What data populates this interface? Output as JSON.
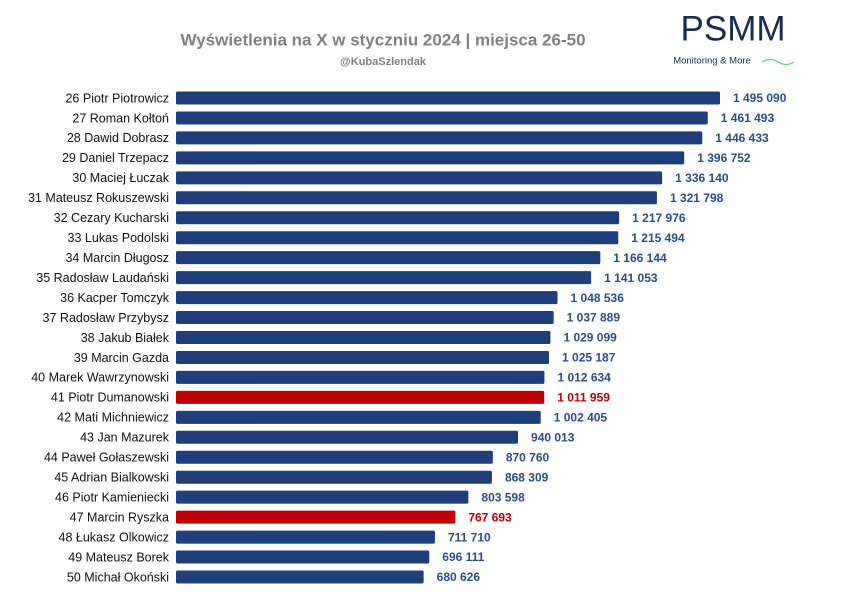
{
  "chart_data": {
    "type": "bar",
    "orientation": "horizontal",
    "title": "Wyświetlenia na X w styczniu 2024 | miejsca 26-50",
    "subtitle": "@KubaSzlendak",
    "logo": {
      "text": "PSMM",
      "tagline": "Monitoring & More"
    },
    "categories": [
      "26 Piotr Piotrowicz",
      "27 Roman Kołtoń",
      "28 Dawid Dobrasz",
      "29 Daniel Trzepacz",
      "30 Maciej Łuczak",
      "31 Mateusz Rokuszewski",
      "32 Cezary Kucharski",
      "33 Lukas Podolski",
      "34 Marcin Długosz",
      "35 Radosław Laudański",
      "36 Kacper Tomczyk",
      "37 Radosław Przybysz",
      "38 Jakub Białek",
      "39 Marcin Gazda",
      "40 Marek Wawrzynowski",
      "41 Piotr Dumanowski",
      "42 Mati Michniewicz",
      "43 Jan Mazurek",
      "44 Paweł Gołaszewski",
      "45 Adrian Bialkowski",
      "46 Piotr Kamieniecki",
      "47 Marcin Ryszka",
      "48 Łukasz Olkowicz",
      "49 Mateusz Borek",
      "50 Michał Okoński"
    ],
    "values": [
      1495090,
      1461493,
      1446433,
      1396752,
      1336140,
      1321798,
      1217976,
      1215494,
      1166144,
      1141053,
      1048536,
      1037889,
      1029099,
      1025187,
      1012634,
      1011959,
      1002405,
      940013,
      870760,
      868309,
      803598,
      767693,
      711710,
      696111,
      680626
    ],
    "value_labels": [
      "1 495 090",
      "1 461 493",
      "1 446 433",
      "1 396 752",
      "1 336 140",
      "1 321 798",
      "1 217 976",
      "1 215 494",
      "1 166 144",
      "1 141 053",
      "1 048 536",
      "1 037 889",
      "1 029 099",
      "1 025 187",
      "1 012 634",
      "1 011 959",
      "1 002 405",
      "940 013",
      "870 760",
      "868 309",
      "803 598",
      "767 693",
      "711 710",
      "696 111",
      "680 626"
    ],
    "colors": [
      "#1f3f7c",
      "#1f3f7c",
      "#1f3f7c",
      "#1f3f7c",
      "#1f3f7c",
      "#1f3f7c",
      "#1f3f7c",
      "#1f3f7c",
      "#1f3f7c",
      "#1f3f7c",
      "#1f3f7c",
      "#1f3f7c",
      "#1f3f7c",
      "#1f3f7c",
      "#1f3f7c",
      "#c00000",
      "#1f3f7c",
      "#1f3f7c",
      "#1f3f7c",
      "#1f3f7c",
      "#1f3f7c",
      "#c00000",
      "#1f3f7c",
      "#1f3f7c",
      "#1f3f7c"
    ]
  }
}
